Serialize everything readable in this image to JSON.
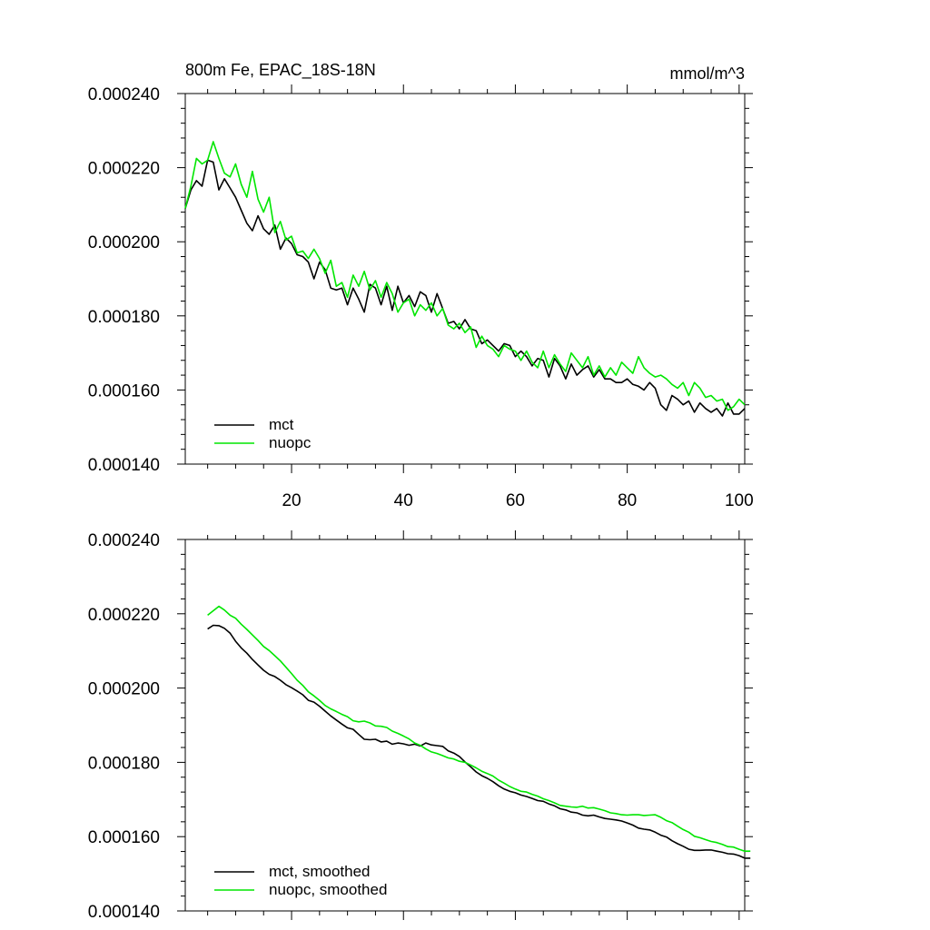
{
  "colors": {
    "mct": "#000000",
    "nuopc": "#00e600",
    "axis": "#000000"
  },
  "chart_data": [
    {
      "type": "line",
      "title": "800m Fe, EPAC_18S-18N",
      "units": "mmol/m^3",
      "xlabel": "",
      "ylabel": "",
      "xlim": [
        1,
        101
      ],
      "ylim": [
        0.00014,
        0.00024
      ],
      "xticks": [
        20,
        40,
        60,
        80,
        100
      ],
      "xtick_labels": [
        "20",
        "40",
        "60",
        "80",
        "100"
      ],
      "yticks": [
        0.00014,
        0.00016,
        0.00018,
        0.0002,
        0.00022,
        0.00024
      ],
      "ytick_labels": [
        "0.000140",
        "0.000160",
        "0.000180",
        "0.000200",
        "0.000220",
        "0.000240"
      ],
      "legend_position": "bottom-left",
      "series": [
        {
          "name": "mct",
          "x_start": 1,
          "values": [
            0.000209,
            0.000214,
            0.0002165,
            0.000215,
            0.000222,
            0.0002215,
            0.000214,
            0.000217,
            0.0002145,
            0.000212,
            0.0002085,
            0.000205,
            0.000203,
            0.000207,
            0.0002035,
            0.000202,
            0.0002045,
            0.000198,
            0.000201,
            0.0001995,
            0.0001965,
            0.000196,
            0.0001945,
            0.00019,
            0.0001945,
            0.0001925,
            0.0001875,
            0.000187,
            0.0001875,
            0.000183,
            0.0001875,
            0.0001845,
            0.000181,
            0.0001885,
            0.0001875,
            0.000183,
            0.000188,
            0.0001815,
            0.000188,
            0.0001835,
            0.0001855,
            0.0001825,
            0.0001865,
            0.0001855,
            0.000181,
            0.000186,
            0.000182,
            0.000178,
            0.0001785,
            0.0001765,
            0.000179,
            0.0001765,
            0.000176,
            0.0001725,
            0.0001735,
            0.000172,
            0.0001705,
            0.0001725,
            0.000172,
            0.000169,
            0.0001705,
            0.000169,
            0.0001665,
            0.0001685,
            0.000168,
            0.0001635,
            0.0001685,
            0.0001665,
            0.000163,
            0.000167,
            0.000164,
            0.0001655,
            0.0001665,
            0.0001635,
            0.0001655,
            0.000163,
            0.000163,
            0.000162,
            0.000162,
            0.000163,
            0.0001615,
            0.000161,
            0.00016,
            0.000162,
            0.0001605,
            0.000156,
            0.0001545,
            0.0001585,
            0.0001575,
            0.000156,
            0.000157,
            0.000154,
            0.0001565,
            0.000155,
            0.000154,
            0.000155,
            0.000153,
            0.0001565,
            0.0001535,
            0.0001535,
            0.000155
          ]
        },
        {
          "name": "nuopc",
          "x_start": 1,
          "values": [
            0.000209,
            0.000215,
            0.0002225,
            0.000221,
            0.000222,
            0.000227,
            0.0002225,
            0.0002185,
            0.0002175,
            0.000221,
            0.0002155,
            0.000212,
            0.000219,
            0.0002115,
            0.000208,
            0.000212,
            0.0002025,
            0.0002055,
            0.0002005,
            0.0002015,
            0.000197,
            0.0001975,
            0.0001955,
            0.000198,
            0.0001955,
            0.0001915,
            0.000195,
            0.000188,
            0.000189,
            0.000185,
            0.000191,
            0.000188,
            0.000192,
            0.000187,
            0.0001895,
            0.000185,
            0.000189,
            0.000186,
            0.000181,
            0.0001835,
            0.0001845,
            0.00018,
            0.000183,
            0.0001815,
            0.0001835,
            0.00018,
            0.000182,
            0.0001775,
            0.0001765,
            0.000178,
            0.0001755,
            0.000177,
            0.0001715,
            0.0001745,
            0.000172,
            0.000171,
            0.000169,
            0.000172,
            0.000171,
            0.0001705,
            0.000168,
            0.0001705,
            0.0001675,
            0.000166,
            0.0001705,
            0.000166,
            0.0001695,
            0.000167,
            0.000165,
            0.00017,
            0.000168,
            0.000166,
            0.000169,
            0.000164,
            0.0001665,
            0.0001635,
            0.000166,
            0.000164,
            0.0001675,
            0.000166,
            0.0001645,
            0.000169,
            0.000166,
            0.0001645,
            0.0001635,
            0.000164,
            0.000163,
            0.0001615,
            0.0001605,
            0.000162,
            0.0001585,
            0.000162,
            0.0001605,
            0.000158,
            0.0001585,
            0.000157,
            0.0001575,
            0.0001545,
            0.0001555,
            0.0001575,
            0.000156
          ]
        }
      ]
    },
    {
      "type": "line",
      "title": "",
      "xlabel": "",
      "ylabel": "",
      "xlim": [
        1,
        101
      ],
      "ylim": [
        0.00014,
        0.00024
      ],
      "xticks": [
        20,
        40,
        60,
        80,
        100
      ],
      "xtick_labels": [],
      "yticks": [
        0.00014,
        0.00016,
        0.00018,
        0.0002,
        0.00022,
        0.00024
      ],
      "ytick_labels": [
        "0.000140",
        "0.000160",
        "0.000180",
        "0.000200",
        "0.000220",
        "0.000240"
      ],
      "legend_position": "bottom-left",
      "series": [
        {
          "name": "mct, smoothed",
          "x_start": 5,
          "values": [
            0.0002159,
            0.0002169,
            0.0002168,
            0.0002161,
            0.0002148,
            0.0002126,
            0.0002108,
            0.0002094,
            0.0002077,
            0.0002062,
            0.0002048,
            0.0002037,
            0.0002031,
            0.0002021,
            0.0002009,
            0.0002001,
            0.0001992,
            0.0001982,
            0.0001967,
            0.0001962,
            0.0001951,
            0.0001938,
            0.0001925,
            0.0001914,
            0.0001903,
            0.0001893,
            0.0001889,
            0.0001875,
            0.0001862,
            0.0001861,
            0.0001862,
            0.0001855,
            0.0001857,
            0.0001849,
            0.0001852,
            0.000185,
            0.0001846,
            0.0001849,
            0.0001844,
            0.0001852,
            0.0001847,
            0.0001845,
            0.0001843,
            0.0001831,
            0.0001825,
            0.0001816,
            0.0001801,
            0.0001788,
            0.0001774,
            0.0001764,
            0.0001757,
            0.0001748,
            0.0001737,
            0.0001728,
            0.0001722,
            0.0001718,
            0.0001712,
            0.0001708,
            0.0001703,
            0.0001697,
            0.0001695,
            0.0001688,
            0.0001683,
            0.0001675,
            0.0001672,
            0.0001666,
            0.0001664,
            0.0001658,
            0.0001656,
            0.0001658,
            0.0001653,
            0.0001649,
            0.0001647,
            0.0001645,
            0.0001642,
            0.0001637,
            0.0001631,
            0.0001623,
            0.000162,
            0.0001618,
            0.0001612,
            0.0001604,
            0.0001599,
            0.0001589,
            0.0001581,
            0.0001574,
            0.0001566,
            0.0001563,
            0.0001563,
            0.0001564,
            0.0001564,
            0.0001561,
            0.0001558,
            0.0001554,
            0.0001553,
            0.0001549,
            0.0001542,
            0.0001542
          ]
        },
        {
          "name": "nuopc, smoothed",
          "x_start": 5,
          "values": [
            0.0002196,
            0.0002208,
            0.000222,
            0.000221,
            0.0002196,
            0.0002188,
            0.0002172,
            0.0002158,
            0.0002143,
            0.0002128,
            0.0002112,
            0.0002101,
            0.0002087,
            0.0002073,
            0.0002056,
            0.0002039,
            0.0002021,
            0.0002007,
            0.000199,
            0.0001979,
            0.0001967,
            0.0001953,
            0.0001944,
            0.0001937,
            0.0001929,
            0.0001923,
            0.0001912,
            0.0001909,
            0.0001911,
            0.0001906,
            0.0001898,
            0.0001897,
            0.0001894,
            0.0001884,
            0.0001878,
            0.0001871,
            0.0001863,
            0.0001852,
            0.0001846,
            0.0001836,
            0.0001828,
            0.0001824,
            0.0001818,
            0.0001812,
            0.0001809,
            0.0001803,
            0.00018,
            0.0001793,
            0.0001785,
            0.0001776,
            0.000177,
            0.0001763,
            0.0001752,
            0.0001744,
            0.0001735,
            0.0001728,
            0.0001722,
            0.000172,
            0.0001714,
            0.0001709,
            0.0001702,
            0.0001697,
            0.0001691,
            0.0001684,
            0.0001682,
            0.000168,
            0.0001679,
            0.0001682,
            0.0001677,
            0.0001678,
            0.0001674,
            0.000167,
            0.0001664,
            0.0001662,
            0.0001659,
            0.0001658,
            0.0001659,
            0.0001659,
            0.0001657,
            0.0001658,
            0.0001659,
            0.0001652,
            0.0001643,
            0.0001638,
            0.0001628,
            0.0001619,
            0.0001612,
            0.0001601,
            0.0001597,
            0.0001592,
            0.0001587,
            0.0001584,
            0.0001579,
            0.0001573,
            0.0001572,
            0.0001566,
            0.0001561,
            0.0001561
          ]
        }
      ]
    }
  ]
}
